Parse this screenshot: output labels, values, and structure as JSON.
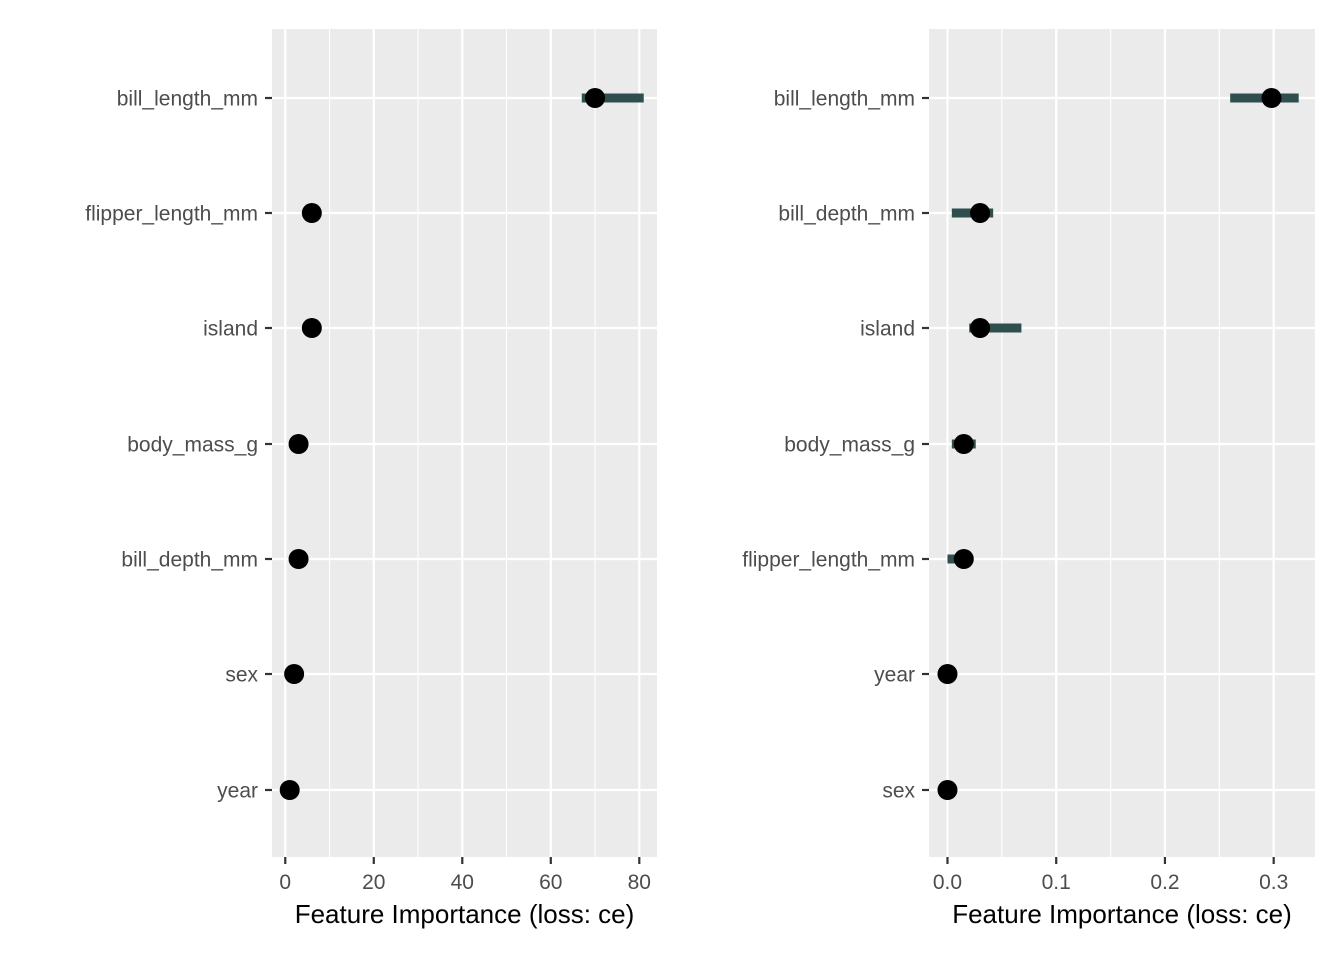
{
  "chart_data": [
    {
      "type": "scatter",
      "subtype": "dot-with-interval",
      "title": "",
      "xlabel": "Feature Importance (loss: ce)",
      "ylabel": "",
      "xlim": [
        -3,
        84
      ],
      "xticks": [
        0,
        20,
        40,
        60,
        80
      ],
      "xtick_labels": [
        "0",
        "20",
        "40",
        "60",
        "80"
      ],
      "grid": true,
      "legend": "none",
      "features": [
        "bill_length_mm",
        "flipper_length_mm",
        "island",
        "body_mass_g",
        "bill_depth_mm",
        "sex",
        "year"
      ],
      "importance": [
        70,
        6,
        6,
        3,
        3,
        2,
        1
      ],
      "interval_low": [
        67,
        6,
        6,
        3,
        3,
        2,
        1
      ],
      "interval_high": [
        81,
        6,
        6,
        3,
        3,
        2,
        1
      ],
      "colors": {
        "interval": "#2f4f4f",
        "point": "#000000",
        "panel": "#ebebeb"
      }
    },
    {
      "type": "scatter",
      "subtype": "dot-with-interval",
      "title": "",
      "xlabel": "Feature Importance (loss: ce)",
      "ylabel": "",
      "xlim": [
        -0.017,
        0.338
      ],
      "xticks": [
        0.0,
        0.1,
        0.2,
        0.3
      ],
      "xtick_labels": [
        "0.0",
        "0.1",
        "0.2",
        "0.3"
      ],
      "grid": true,
      "legend": "none",
      "features": [
        "bill_length_mm",
        "bill_depth_mm",
        "island",
        "body_mass_g",
        "flipper_length_mm",
        "year",
        "sex"
      ],
      "importance": [
        0.298,
        0.03,
        0.03,
        0.015,
        0.015,
        0.0,
        0.0
      ],
      "interval_low": [
        0.26,
        0.004,
        0.02,
        0.004,
        0.0,
        0.0,
        0.0
      ],
      "interval_high": [
        0.323,
        0.042,
        0.068,
        0.026,
        0.015,
        0.0,
        0.0
      ],
      "colors": {
        "interval": "#2f4f4f",
        "point": "#000000",
        "panel": "#ebebeb"
      }
    }
  ]
}
